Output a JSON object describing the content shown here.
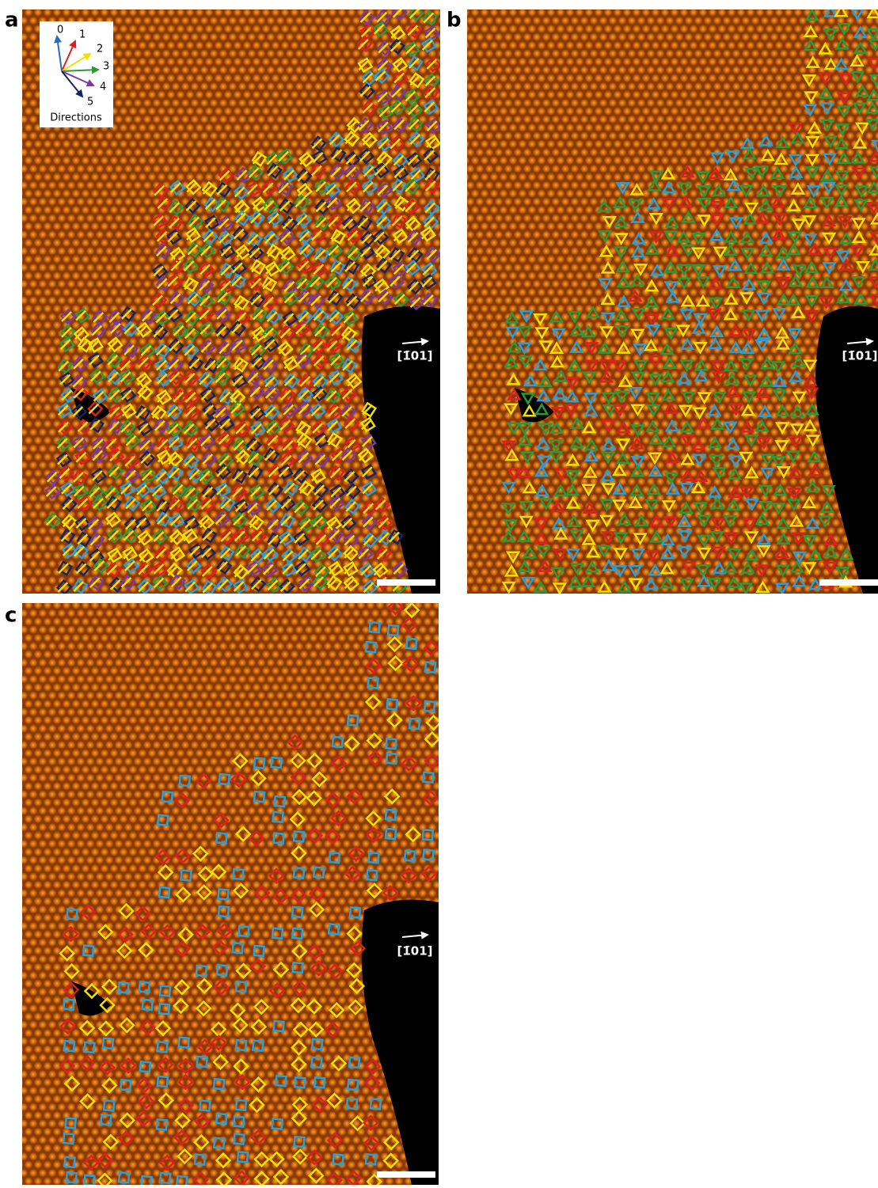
{
  "panels": [
    {
      "label": "a",
      "axis_label": "[1̄01]"
    },
    {
      "label": "b",
      "axis_label": "[1̄01]"
    },
    {
      "label": "c",
      "axis_label": "[1̄01]"
    }
  ],
  "legend": {
    "title": "Directions",
    "directions": [
      "0",
      "1",
      "2",
      "3",
      "4",
      "5"
    ]
  }
}
